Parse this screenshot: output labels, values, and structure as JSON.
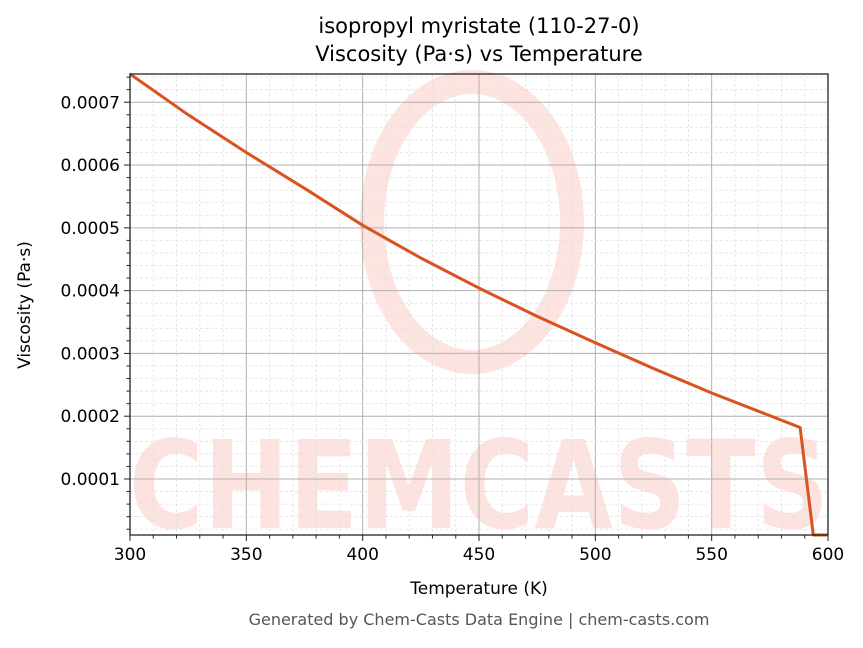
{
  "chart_data": {
    "type": "line",
    "title": "isopropyl myristate (110-27-0)",
    "subtitle": "Viscosity (Pa·s) vs Temperature",
    "xlabel": "Temperature (K)",
    "ylabel": "Viscosity (Pa·s)",
    "xlim": [
      300,
      600
    ],
    "ylim": [
      1.08e-05,
      0.000745
    ],
    "xticks": [
      "300",
      "350",
      "400",
      "450",
      "500",
      "550",
      "600"
    ],
    "yticks": [
      "0.0001",
      "0.0002",
      "0.0003",
      "0.0004",
      "0.0005",
      "0.0006",
      "0.0007"
    ],
    "grid": true,
    "line_color": "#d9531e",
    "series": [
      {
        "x": [
          300,
          325,
          350,
          375,
          400,
          425,
          450,
          475,
          500,
          525,
          550,
          575,
          588,
          593.7,
          600
        ],
        "y": [
          0.000745,
          0.00068,
          0.00062,
          0.000563,
          0.000504,
          0.000452,
          0.000404,
          0.000359,
          0.000317,
          0.000276,
          0.000237,
          0.000201,
          0.000182,
          1.08e-05,
          1.08e-05
        ]
      }
    ]
  },
  "watermark": "CHEMCASTS",
  "footer": "Generated by Chem-Casts Data Engine | chem-casts.com"
}
